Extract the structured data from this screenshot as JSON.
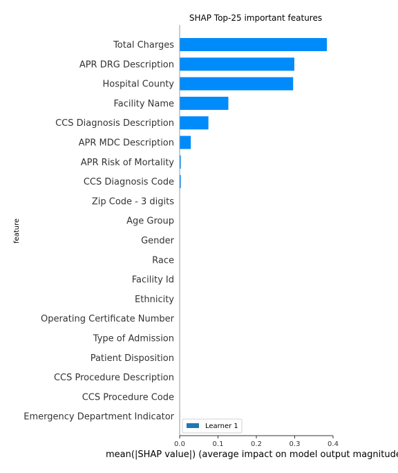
{
  "chart_data": {
    "type": "bar",
    "orientation": "horizontal",
    "title": "SHAP Top-25 important features",
    "xlabel": "mean(|SHAP value|) (average impact on model output magnitude)",
    "ylabel": "feature",
    "xlim": [
      0.0,
      0.4
    ],
    "xticks": [
      "0.0",
      "0.1",
      "0.2",
      "0.3",
      "0.4"
    ],
    "xtick_values": [
      0.0,
      0.1,
      0.2,
      0.3,
      0.4
    ],
    "grid": false,
    "legend_position": "bottom-left",
    "bar_color": "#008bfb",
    "legend_color": "#1f77b4",
    "categories": [
      "Total Charges",
      "APR DRG Description",
      "Hospital County",
      "Facility Name",
      "CCS Diagnosis Description",
      "APR MDC Description",
      "APR Risk of Mortality",
      "CCS Diagnosis Code",
      "Zip Code - 3 digits",
      "Age Group",
      "Gender",
      "Race",
      "Facility Id",
      "Ethnicity",
      "Operating Certificate Number",
      "Type of Admission",
      "Patient Disposition",
      "CCS Procedure Description",
      "CCS Procedure Code",
      "Emergency Department Indicator"
    ],
    "series": [
      {
        "name": "Learner 1",
        "values": [
          0.384,
          0.299,
          0.296,
          0.127,
          0.075,
          0.029,
          0.003,
          0.003,
          0.0005,
          0.0004,
          0.0003,
          0.0003,
          0.0003,
          0.0003,
          0.0002,
          0.0002,
          0.0002,
          0.0002,
          0.0002,
          0.001
        ]
      }
    ]
  }
}
